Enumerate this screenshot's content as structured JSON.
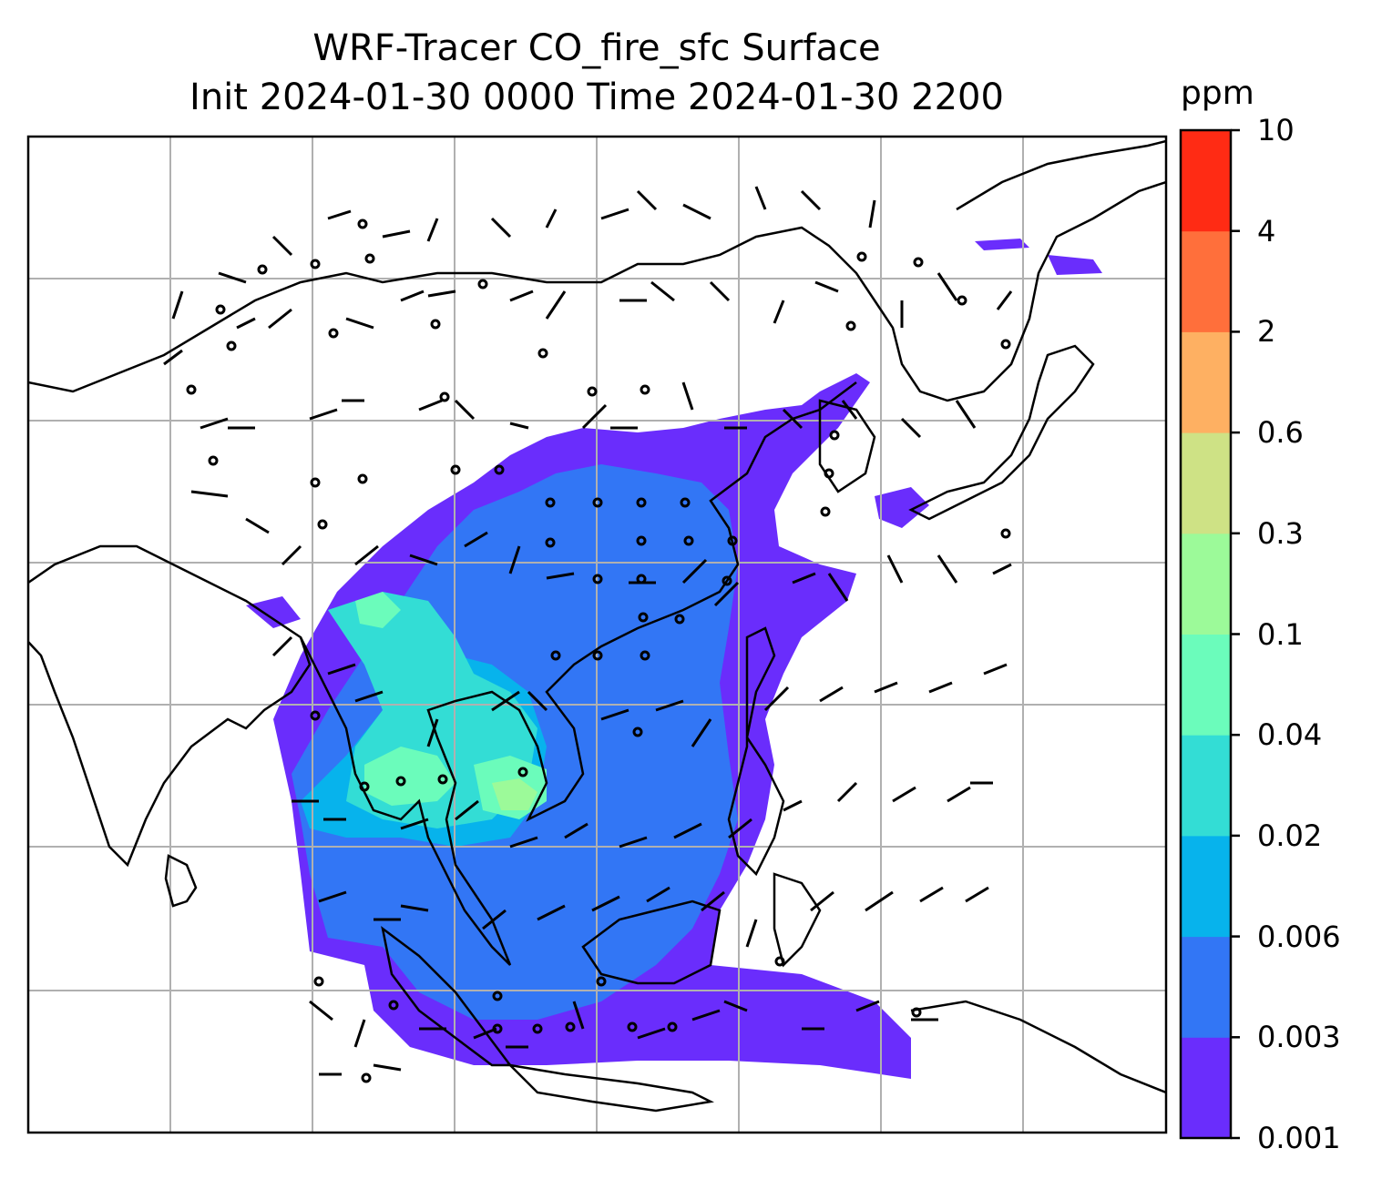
{
  "title": {
    "line1": "WRF-Tracer CO_fire_sfc Surface",
    "line2": "Init 2024-01-30 0000 Time 2024-01-30 2200"
  },
  "colorbar": {
    "unit": "ppm",
    "levels": [
      {
        "label": "0.001",
        "color": "#6a2dfc"
      },
      {
        "label": "0.003",
        "color": "#3276f5"
      },
      {
        "label": "0.006",
        "color": "#07b3ec"
      },
      {
        "label": "0.02",
        "color": "#33ddd5"
      },
      {
        "label": "0.04",
        "color": "#6bfcbb"
      },
      {
        "label": "0.1",
        "color": "#9cfa99"
      },
      {
        "label": "0.3",
        "color": "#cee285"
      },
      {
        "label": "0.6",
        "color": "#feb062"
      },
      {
        "label": "2",
        "color": "#ff6f3b"
      },
      {
        "label": "4",
        "color": "#ff2b14"
      },
      {
        "label": "10",
        "color": ""
      }
    ]
  },
  "map": {
    "projection": "mercator",
    "gridlines": true,
    "field": "CO_fire_sfc",
    "wind_barbs": true,
    "gridline_color": "#b0b0b0",
    "coastline_color": "#000000"
  }
}
